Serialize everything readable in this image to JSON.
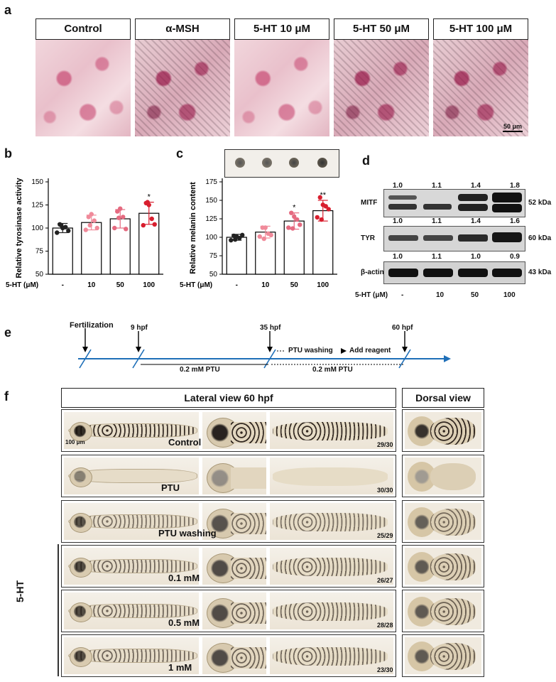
{
  "panel_labels": {
    "a": "a",
    "b": "b",
    "c": "c",
    "d": "d",
    "e": "e",
    "f": "f"
  },
  "panel_a": {
    "headers": [
      "Control",
      "α-MSH",
      "5-HT 10 μM",
      "5-HT 50 μM",
      "5-HT 100 μM"
    ],
    "scale": "50 μm"
  },
  "chart_data": [
    {
      "type": "bar",
      "panel": "b",
      "categories": [
        "-",
        "10",
        "50",
        "100"
      ],
      "values": [
        100,
        106,
        110,
        116
      ],
      "errors": [
        5,
        8,
        10,
        12
      ],
      "significance": [
        "",
        "",
        "",
        "*"
      ],
      "points": [
        [
          95,
          104,
          100,
          101,
          97,
          103
        ],
        [
          98,
          112,
          115,
          108,
          100,
          103
        ],
        [
          100,
          118,
          121,
          112,
          99,
          111
        ],
        [
          103,
          127,
          125,
          110,
          104,
          128
        ]
      ],
      "ylabel": "Relative tyrosinase activity",
      "xlabel": "5-HT (μM)",
      "ylim": [
        50,
        150
      ],
      "yticks": [
        50,
        75,
        100,
        125,
        150
      ],
      "colors": [
        "#222222",
        "#f08a9a",
        "#e56a80",
        "#d81e2e"
      ]
    },
    {
      "type": "bar",
      "panel": "c",
      "categories": [
        "-",
        "10",
        "50",
        "100"
      ],
      "values": [
        100,
        107,
        122,
        136
      ],
      "errors": [
        4,
        8,
        11,
        14
      ],
      "significance": [
        "",
        "",
        "*",
        "**"
      ],
      "points": [
        [
          96,
          102,
          101,
          99,
          103,
          97
        ],
        [
          101,
          113,
          113,
          105,
          103,
          98
        ],
        [
          113,
          133,
          128,
          124,
          117,
          112
        ],
        [
          127,
          154,
          144,
          142,
          138,
          124
        ]
      ],
      "ylabel": "Relative melanin content",
      "xlabel": "5-HT (μM)",
      "ylim": [
        50,
        175
      ],
      "yticks": [
        50,
        75,
        100,
        125,
        150,
        175
      ],
      "colors": [
        "#222222",
        "#f08a9a",
        "#e56a80",
        "#d81e2e"
      ]
    }
  ],
  "panel_d": {
    "rows": [
      {
        "name": "MITF",
        "kda": "52 kDa",
        "values": [
          "1.0",
          "1.1",
          "1.4",
          "1.8"
        ]
      },
      {
        "name": "TYR",
        "kda": "60 kDa",
        "values": [
          "1.0",
          "1.1",
          "1.4",
          "1.6"
        ]
      },
      {
        "name": "β-actin",
        "kda": "43 kDa",
        "values": [
          "1.0",
          "1.1",
          "1.0",
          "0.9"
        ]
      }
    ],
    "xlabel": "5-HT (μM)",
    "lanes": [
      "-",
      "10",
      "50",
      "100"
    ]
  },
  "panel_e": {
    "fertilization": "Fertilization",
    "t1": "9 hpf",
    "t2": "35 hpf",
    "t3": "60 hpf",
    "seg1": "0.2 mM PTU",
    "seg2": "0.2 mM PTU",
    "washing": "PTU washing",
    "reagent": "Add reagent"
  },
  "panel_f": {
    "header_lateral": "Lateral view 60 hpf",
    "header_dorsal": "Dorsal view",
    "group": "5-HT",
    "scale": "100 μm",
    "rows": [
      {
        "label": "Control",
        "ratio": "29/30"
      },
      {
        "label": "PTU",
        "ratio": "30/30"
      },
      {
        "label": "PTU washing",
        "ratio": "25/29"
      },
      {
        "label": "0.1 mM",
        "ratio": "26/27"
      },
      {
        "label": "0.5 mM",
        "ratio": "28/28"
      },
      {
        "label": "1 mM",
        "ratio": "23/30"
      }
    ]
  }
}
